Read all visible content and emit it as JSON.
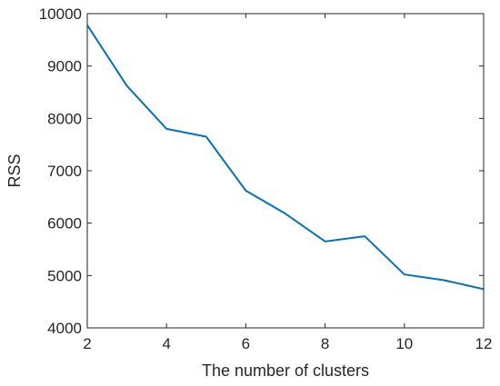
{
  "chart_data": {
    "type": "line",
    "title": "",
    "xlabel": "The number of clusters",
    "ylabel": "RSS",
    "xlim": [
      2,
      12
    ],
    "ylim": [
      4000,
      10000
    ],
    "xticks": [
      2,
      4,
      6,
      8,
      10,
      12
    ],
    "yticks": [
      4000,
      5000,
      6000,
      7000,
      8000,
      9000,
      10000
    ],
    "grid": false,
    "series": [
      {
        "color": "#0072BD",
        "x": [
          2,
          3,
          4,
          5,
          6,
          7,
          8,
          9,
          10,
          11,
          12
        ],
        "y": [
          9780,
          8620,
          7800,
          7650,
          6620,
          6180,
          5650,
          5750,
          5020,
          4910,
          4740
        ]
      }
    ]
  }
}
